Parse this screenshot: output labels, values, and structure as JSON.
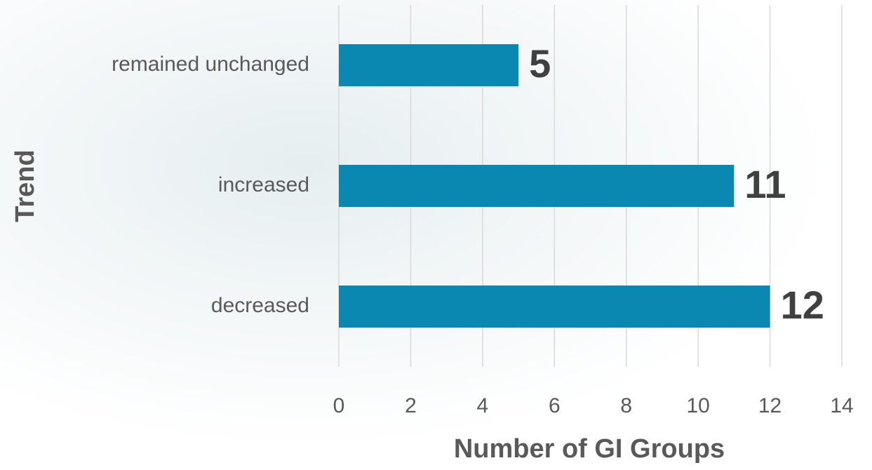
{
  "chart_data": {
    "type": "bar",
    "orientation": "horizontal",
    "categories": [
      "remained unchanged",
      "increased",
      "decreased"
    ],
    "values": [
      5,
      11,
      12
    ],
    "color": "#0b88b2",
    "xlabel": "Number of GI Groups",
    "ylabel": "Trend",
    "xlim": [
      0,
      14
    ],
    "xticks": [
      0,
      2,
      4,
      6,
      8,
      10,
      12,
      14
    ],
    "grid": true
  }
}
